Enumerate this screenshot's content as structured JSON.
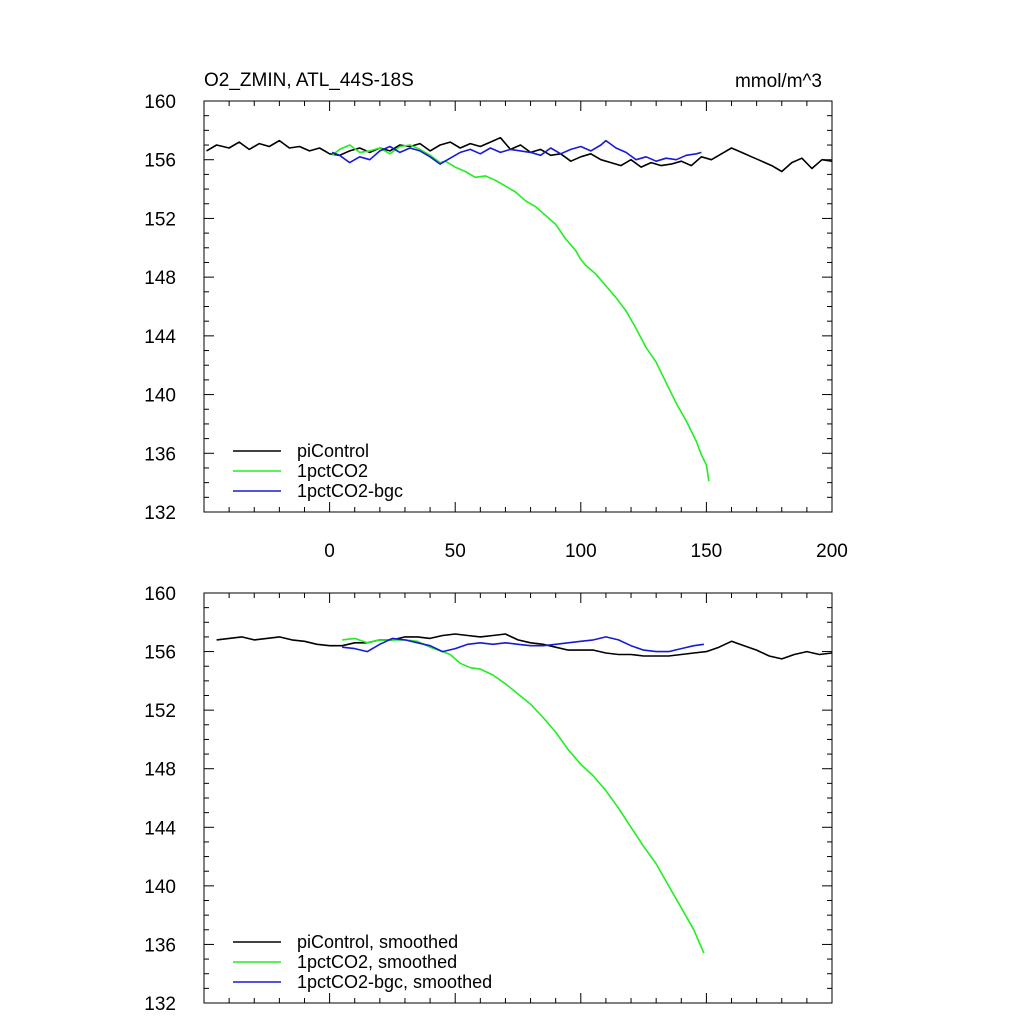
{
  "colors": {
    "piControl": "#000000",
    "1pctCO2": "#22ee22",
    "1pctCO2-bgc": "#1a1ad6",
    "background": "#ffffff"
  },
  "chart_data": [
    {
      "type": "line",
      "title": "O2_ZMIN, ATL_44S-18S",
      "units": "mmol/m^3",
      "xlim": [
        -50,
        200
      ],
      "ylim": [
        132,
        160
      ],
      "xticks": [
        0,
        50,
        100,
        150,
        200
      ],
      "yticks": [
        132,
        136,
        140,
        144,
        148,
        152,
        156,
        160
      ],
      "show_x_tick_labels": true,
      "legend": "bottom-left",
      "series": [
        {
          "name": "piControl",
          "color_key": "piControl",
          "points": [
            [
              -49,
              156.6
            ],
            [
              -45,
              157.0
            ],
            [
              -40,
              156.8
            ],
            [
              -36,
              157.2
            ],
            [
              -32,
              156.7
            ],
            [
              -28,
              157.1
            ],
            [
              -24,
              156.9
            ],
            [
              -20,
              157.3
            ],
            [
              -16,
              156.8
            ],
            [
              -12,
              156.9
            ],
            [
              -8,
              156.6
            ],
            [
              -4,
              156.8
            ],
            [
              0,
              156.4
            ],
            [
              4,
              156.3
            ],
            [
              8,
              156.6
            ],
            [
              12,
              156.8
            ],
            [
              16,
              156.5
            ],
            [
              20,
              156.8
            ],
            [
              24,
              156.6
            ],
            [
              28,
              157.0
            ],
            [
              32,
              156.9
            ],
            [
              36,
              157.1
            ],
            [
              40,
              156.6
            ],
            [
              44,
              157.0
            ],
            [
              48,
              157.2
            ],
            [
              52,
              156.8
            ],
            [
              56,
              157.1
            ],
            [
              60,
              156.9
            ],
            [
              64,
              157.2
            ],
            [
              68,
              157.5
            ],
            [
              72,
              156.7
            ],
            [
              76,
              157.0
            ],
            [
              80,
              156.5
            ],
            [
              84,
              156.7
            ],
            [
              88,
              156.3
            ],
            [
              92,
              156.4
            ],
            [
              96,
              155.9
            ],
            [
              100,
              156.2
            ],
            [
              104,
              156.4
            ],
            [
              108,
              156.0
            ],
            [
              112,
              155.8
            ],
            [
              116,
              155.6
            ],
            [
              120,
              156.0
            ],
            [
              124,
              155.5
            ],
            [
              128,
              155.8
            ],
            [
              132,
              155.6
            ],
            [
              136,
              155.7
            ],
            [
              140,
              155.9
            ],
            [
              144,
              155.6
            ],
            [
              148,
              156.2
            ],
            [
              152,
              156.0
            ],
            [
              156,
              156.4
            ],
            [
              160,
              156.8
            ],
            [
              164,
              156.5
            ],
            [
              168,
              156.2
            ],
            [
              172,
              155.9
            ],
            [
              176,
              155.6
            ],
            [
              180,
              155.2
            ],
            [
              184,
              155.8
            ],
            [
              188,
              156.1
            ],
            [
              192,
              155.4
            ],
            [
              196,
              156.0
            ],
            [
              200,
              155.9
            ]
          ]
        },
        {
          "name": "1pctCO2",
          "color_key": "1pctCO2",
          "points": [
            [
              1,
              156.3
            ],
            [
              4,
              156.7
            ],
            [
              8,
              157.0
            ],
            [
              12,
              156.5
            ],
            [
              16,
              156.6
            ],
            [
              20,
              156.8
            ],
            [
              24,
              156.4
            ],
            [
              28,
              156.9
            ],
            [
              32,
              157.0
            ],
            [
              36,
              156.7
            ],
            [
              40,
              156.3
            ],
            [
              44,
              155.8
            ],
            [
              46,
              155.9
            ],
            [
              50,
              155.5
            ],
            [
              54,
              155.2
            ],
            [
              58,
              154.8
            ],
            [
              62,
              154.9
            ],
            [
              66,
              154.6
            ],
            [
              70,
              154.2
            ],
            [
              74,
              153.8
            ],
            [
              78,
              153.2
            ],
            [
              82,
              152.8
            ],
            [
              86,
              152.2
            ],
            [
              90,
              151.6
            ],
            [
              94,
              150.6
            ],
            [
              98,
              149.8
            ],
            [
              100,
              149.2
            ],
            [
              102,
              148.8
            ],
            [
              106,
              148.2
            ],
            [
              110,
              147.4
            ],
            [
              114,
              146.6
            ],
            [
              118,
              145.7
            ],
            [
              122,
              144.5
            ],
            [
              126,
              143.2
            ],
            [
              130,
              142.2
            ],
            [
              134,
              140.8
            ],
            [
              138,
              139.4
            ],
            [
              142,
              138.2
            ],
            [
              146,
              136.8
            ],
            [
              148,
              135.9
            ],
            [
              150,
              135.2
            ],
            [
              151,
              134.1
            ]
          ]
        },
        {
          "name": "1pctCO2-bgc",
          "color_key": "1pctCO2-bgc",
          "points": [
            [
              1,
              156.5
            ],
            [
              4,
              156.3
            ],
            [
              8,
              155.8
            ],
            [
              12,
              156.2
            ],
            [
              16,
              156.0
            ],
            [
              20,
              156.6
            ],
            [
              24,
              156.9
            ],
            [
              28,
              156.5
            ],
            [
              32,
              156.8
            ],
            [
              36,
              156.6
            ],
            [
              40,
              156.2
            ],
            [
              44,
              155.7
            ],
            [
              48,
              156.1
            ],
            [
              52,
              156.5
            ],
            [
              56,
              156.7
            ],
            [
              60,
              156.4
            ],
            [
              64,
              156.8
            ],
            [
              68,
              156.5
            ],
            [
              72,
              156.7
            ],
            [
              76,
              156.6
            ],
            [
              80,
              156.5
            ],
            [
              84,
              156.3
            ],
            [
              88,
              156.8
            ],
            [
              92,
              156.4
            ],
            [
              96,
              156.7
            ],
            [
              100,
              156.9
            ],
            [
              104,
              156.6
            ],
            [
              108,
              157.0
            ],
            [
              110,
              157.3
            ],
            [
              114,
              156.8
            ],
            [
              118,
              156.5
            ],
            [
              122,
              156.0
            ],
            [
              126,
              156.2
            ],
            [
              130,
              155.9
            ],
            [
              134,
              156.1
            ],
            [
              138,
              156.0
            ],
            [
              142,
              156.3
            ],
            [
              146,
              156.4
            ],
            [
              148,
              156.5
            ]
          ]
        }
      ]
    },
    {
      "type": "line",
      "title": "",
      "units": "",
      "xlim": [
        -50,
        200
      ],
      "ylim": [
        132,
        160
      ],
      "xticks": [
        0,
        50,
        100,
        150,
        200
      ],
      "yticks": [
        132,
        136,
        140,
        144,
        148,
        152,
        156,
        160
      ],
      "show_x_tick_labels": false,
      "legend": "bottom-left",
      "series": [
        {
          "name": "piControl, smoothed",
          "color_key": "piControl",
          "points": [
            [
              -45,
              156.8
            ],
            [
              -40,
              156.9
            ],
            [
              -35,
              157.0
            ],
            [
              -30,
              156.8
            ],
            [
              -25,
              156.9
            ],
            [
              -20,
              157.0
            ],
            [
              -15,
              156.8
            ],
            [
              -10,
              156.7
            ],
            [
              -5,
              156.5
            ],
            [
              0,
              156.4
            ],
            [
              5,
              156.4
            ],
            [
              10,
              156.6
            ],
            [
              15,
              156.6
            ],
            [
              20,
              156.8
            ],
            [
              25,
              156.8
            ],
            [
              30,
              157.0
            ],
            [
              35,
              157.0
            ],
            [
              40,
              156.9
            ],
            [
              45,
              157.1
            ],
            [
              50,
              157.2
            ],
            [
              55,
              157.1
            ],
            [
              60,
              157.0
            ],
            [
              65,
              157.1
            ],
            [
              70,
              157.2
            ],
            [
              75,
              156.8
            ],
            [
              80,
              156.6
            ],
            [
              85,
              156.5
            ],
            [
              90,
              156.3
            ],
            [
              95,
              156.1
            ],
            [
              100,
              156.1
            ],
            [
              105,
              156.1
            ],
            [
              110,
              155.9
            ],
            [
              115,
              155.8
            ],
            [
              120,
              155.8
            ],
            [
              125,
              155.7
            ],
            [
              130,
              155.7
            ],
            [
              135,
              155.7
            ],
            [
              140,
              155.8
            ],
            [
              145,
              155.9
            ],
            [
              150,
              156.0
            ],
            [
              155,
              156.3
            ],
            [
              160,
              156.7
            ],
            [
              165,
              156.4
            ],
            [
              170,
              156.1
            ],
            [
              175,
              155.7
            ],
            [
              180,
              155.5
            ],
            [
              185,
              155.8
            ],
            [
              190,
              156.0
            ],
            [
              195,
              155.8
            ],
            [
              200,
              155.9
            ]
          ]
        },
        {
          "name": "1pctCO2, smoothed",
          "color_key": "1pctCO2",
          "points": [
            [
              5,
              156.8
            ],
            [
              10,
              156.9
            ],
            [
              15,
              156.6
            ],
            [
              20,
              156.8
            ],
            [
              25,
              156.8
            ],
            [
              30,
              156.8
            ],
            [
              35,
              156.7
            ],
            [
              40,
              156.3
            ],
            [
              45,
              156.0
            ],
            [
              48,
              155.8
            ],
            [
              52,
              155.2
            ],
            [
              56,
              154.9
            ],
            [
              60,
              154.8
            ],
            [
              65,
              154.4
            ],
            [
              70,
              153.8
            ],
            [
              75,
              153.1
            ],
            [
              80,
              152.4
            ],
            [
              85,
              151.5
            ],
            [
              90,
              150.5
            ],
            [
              95,
              149.3
            ],
            [
              100,
              148.3
            ],
            [
              105,
              147.5
            ],
            [
              110,
              146.5
            ],
            [
              115,
              145.3
            ],
            [
              120,
              144.0
            ],
            [
              125,
              142.7
            ],
            [
              130,
              141.5
            ],
            [
              135,
              140.0
            ],
            [
              140,
              138.5
            ],
            [
              145,
              137.0
            ],
            [
              149,
              135.4
            ]
          ]
        },
        {
          "name": "1pctCO2-bgc, smoothed",
          "color_key": "1pctCO2-bgc",
          "points": [
            [
              5,
              156.3
            ],
            [
              10,
              156.2
            ],
            [
              15,
              156.0
            ],
            [
              20,
              156.5
            ],
            [
              25,
              156.9
            ],
            [
              30,
              156.8
            ],
            [
              35,
              156.6
            ],
            [
              40,
              156.4
            ],
            [
              45,
              156.0
            ],
            [
              50,
              156.2
            ],
            [
              55,
              156.5
            ],
            [
              60,
              156.6
            ],
            [
              65,
              156.5
            ],
            [
              70,
              156.6
            ],
            [
              75,
              156.5
            ],
            [
              80,
              156.4
            ],
            [
              85,
              156.4
            ],
            [
              90,
              156.5
            ],
            [
              95,
              156.6
            ],
            [
              100,
              156.7
            ],
            [
              105,
              156.8
            ],
            [
              110,
              157.0
            ],
            [
              115,
              156.8
            ],
            [
              120,
              156.4
            ],
            [
              125,
              156.1
            ],
            [
              130,
              156.0
            ],
            [
              135,
              156.0
            ],
            [
              140,
              156.2
            ],
            [
              145,
              156.4
            ],
            [
              149,
              156.5
            ]
          ]
        }
      ]
    }
  ]
}
